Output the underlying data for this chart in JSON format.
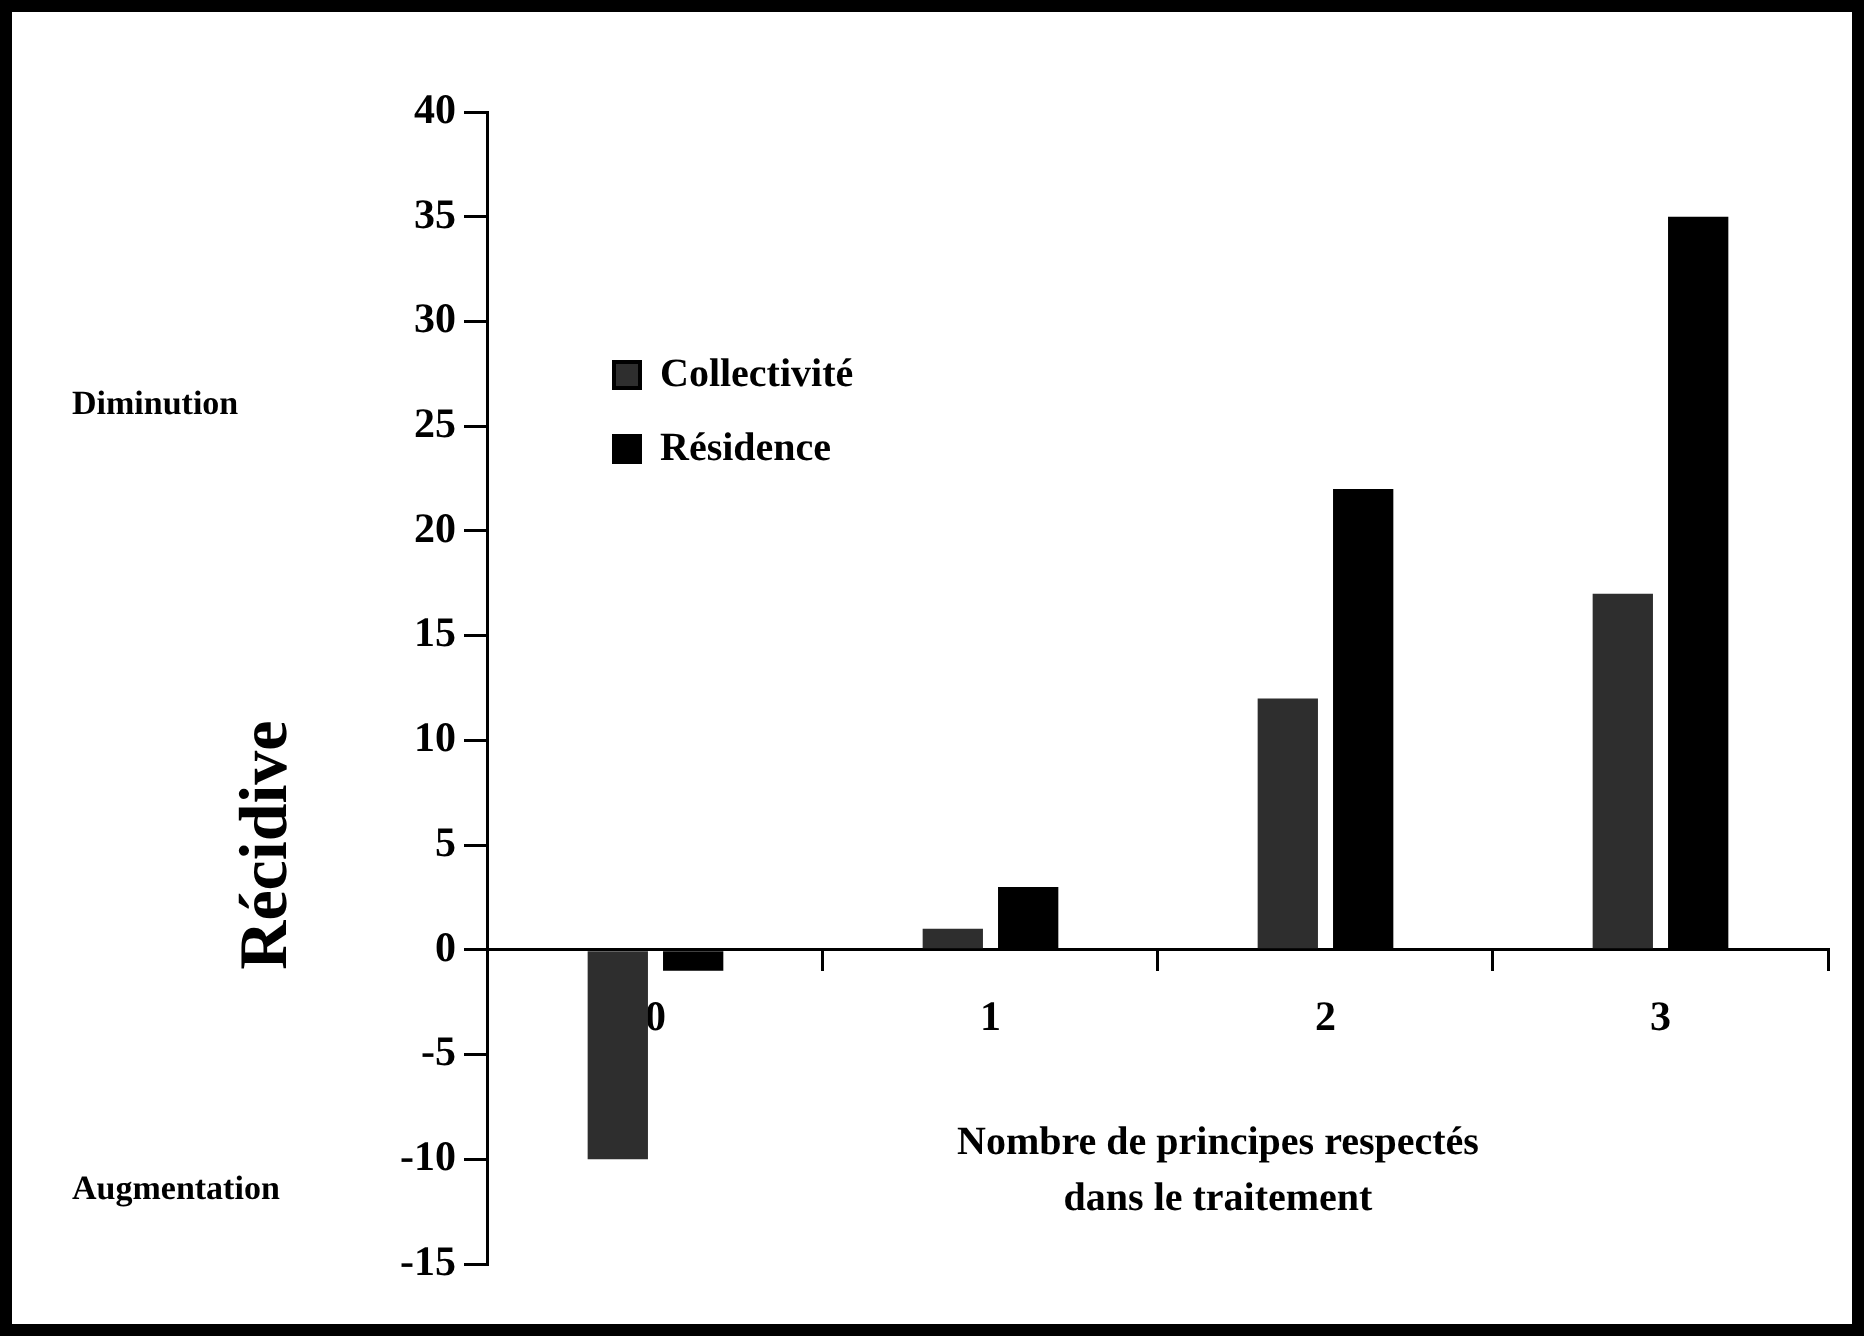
{
  "chart_data": {
    "type": "bar",
    "ylabel": "Récidive",
    "xlabel": "Nombre de principes respectés dans le traitement",
    "categories": [
      "0",
      "1",
      "2",
      "3"
    ],
    "series": [
      {
        "name": "Collectivité",
        "color": "#2e2e2e",
        "values": [
          -10,
          1,
          12,
          17
        ]
      },
      {
        "name": "Résidence",
        "color": "#000000",
        "values": [
          -1,
          3,
          22,
          35
        ]
      }
    ],
    "ylim": [
      -15,
      40
    ],
    "yticks": [
      -15,
      -10,
      -5,
      0,
      5,
      10,
      15,
      20,
      25,
      30,
      35,
      40
    ],
    "grid": false,
    "legend": "top left",
    "annotations": [
      "Diminution",
      "Augmentation"
    ]
  }
}
